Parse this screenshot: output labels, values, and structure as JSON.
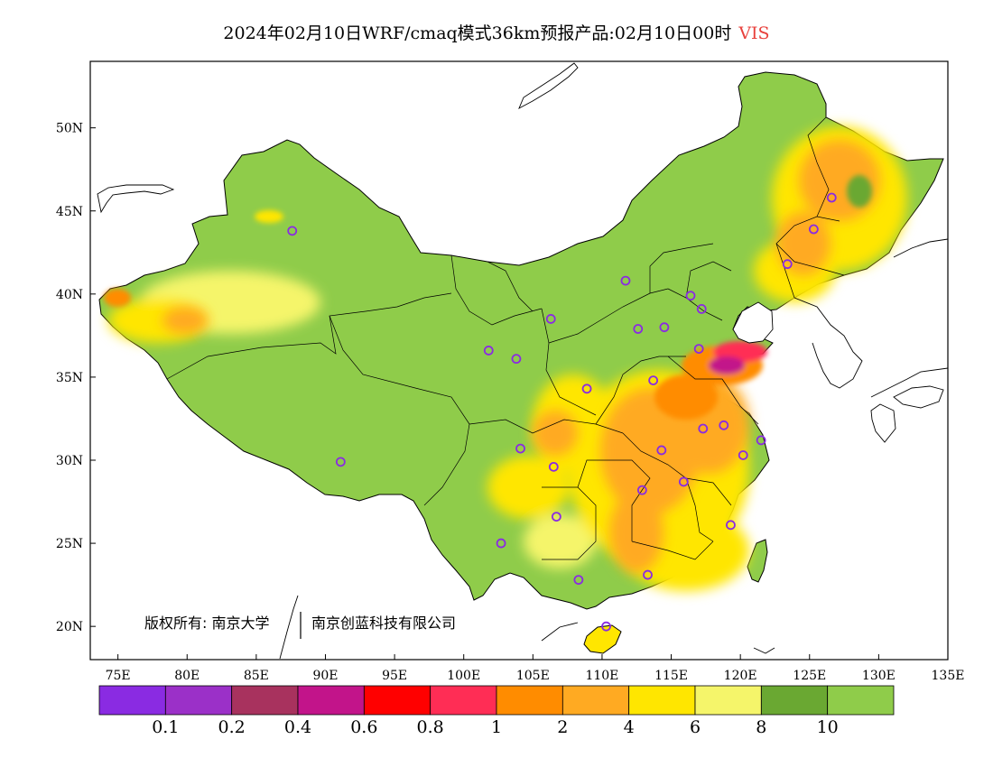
{
  "title": {
    "main": "2024年02月10日WRF/cmaq模式36km预报产品:02月10日00时",
    "variable": "VIS",
    "variable_color": "#e8413c"
  },
  "axes": {
    "lat_labels": [
      "50N",
      "45N",
      "40N",
      "35N",
      "30N",
      "25N",
      "20N"
    ],
    "lat_values": [
      50,
      45,
      40,
      35,
      30,
      25,
      20
    ],
    "lon_labels": [
      "75E",
      "80E",
      "85E",
      "90E",
      "95E",
      "100E",
      "105E",
      "110E",
      "115E",
      "120E",
      "125E",
      "130E",
      "135E"
    ],
    "lon_values": [
      75,
      80,
      85,
      90,
      95,
      100,
      105,
      110,
      115,
      120,
      125,
      130,
      135
    ],
    "lon_range": [
      73,
      135
    ],
    "lat_range": [
      18,
      54
    ]
  },
  "copyright": {
    "left": "版权所有: 南京大学",
    "right": "南京创蓝科技有限公司"
  },
  "colorbar": {
    "colors": [
      "#8a2be2",
      "#9b30c8",
      "#a8325e",
      "#c2148a",
      "#ff0000",
      "#ff2d55",
      "#ff8c00",
      "#ffaa22",
      "#ffe600",
      "#f5f56a",
      "#6aa832",
      "#8fcc4a"
    ],
    "labels": [
      "0.1",
      "0.2",
      "0.4",
      "0.6",
      "0.8",
      "1",
      "2",
      "4",
      "6",
      "8",
      "10"
    ]
  },
  "stations": [
    {
      "lon": 87.6,
      "lat": 43.8
    },
    {
      "lon": 91.1,
      "lat": 29.9
    },
    {
      "lon": 101.8,
      "lat": 36.6
    },
    {
      "lon": 103.8,
      "lat": 36.1
    },
    {
      "lon": 106.3,
      "lat": 38.5
    },
    {
      "lon": 111.7,
      "lat": 40.8
    },
    {
      "lon": 112.6,
      "lat": 37.9
    },
    {
      "lon": 114.5,
      "lat": 38.0
    },
    {
      "lon": 116.4,
      "lat": 39.9
    },
    {
      "lon": 117.2,
      "lat": 39.1
    },
    {
      "lon": 117.0,
      "lat": 36.7
    },
    {
      "lon": 113.7,
      "lat": 34.8
    },
    {
      "lon": 108.9,
      "lat": 34.3
    },
    {
      "lon": 104.1,
      "lat": 30.7
    },
    {
      "lon": 106.5,
      "lat": 29.6
    },
    {
      "lon": 106.7,
      "lat": 26.6
    },
    {
      "lon": 102.7,
      "lat": 25.0
    },
    {
      "lon": 108.3,
      "lat": 22.8
    },
    {
      "lon": 113.3,
      "lat": 23.1
    },
    {
      "lon": 110.3,
      "lat": 20.0
    },
    {
      "lon": 119.3,
      "lat": 26.1
    },
    {
      "lon": 115.9,
      "lat": 28.7
    },
    {
      "lon": 112.9,
      "lat": 28.2
    },
    {
      "lon": 114.3,
      "lat": 30.6
    },
    {
      "lon": 117.3,
      "lat": 31.9
    },
    {
      "lon": 118.8,
      "lat": 32.1
    },
    {
      "lon": 120.2,
      "lat": 30.3
    },
    {
      "lon": 121.5,
      "lat": 31.2
    },
    {
      "lon": 123.4,
      "lat": 41.8
    },
    {
      "lon": 125.3,
      "lat": 43.9
    },
    {
      "lon": 126.6,
      "lat": 45.8
    }
  ]
}
